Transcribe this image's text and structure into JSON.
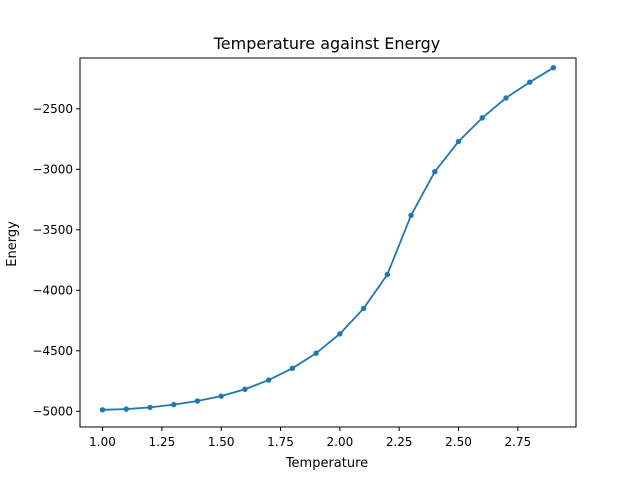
{
  "chart_data": {
    "type": "line",
    "title": "Temperature against Energy",
    "xlabel": "Temperature",
    "ylabel": "Energy",
    "xlim": [
      0.905,
      2.995
    ],
    "ylim": [
      -5130,
      -2080
    ],
    "grid": false,
    "legend": "none",
    "x_ticks": [
      1.0,
      1.25,
      1.5,
      1.75,
      2.0,
      2.25,
      2.5,
      2.75
    ],
    "x_tick_labels": [
      "1.00",
      "1.25",
      "1.50",
      "1.75",
      "2.00",
      "2.25",
      "2.50",
      "2.75"
    ],
    "y_ticks": [
      -5000,
      -4500,
      -4000,
      -3500,
      -3000,
      -2500
    ],
    "y_tick_labels": [
      "−5000",
      "−4500",
      "−4000",
      "−3500",
      "−3000",
      "−2500"
    ],
    "series": [
      {
        "color": "#1f77b4",
        "marker": "circle",
        "x": [
          1.0,
          1.1,
          1.2,
          1.3,
          1.4,
          1.5,
          1.6,
          1.7,
          1.8,
          1.9,
          2.0,
          2.1,
          2.2,
          2.3,
          2.4,
          2.5,
          2.6,
          2.7,
          2.8,
          2.9
        ],
        "y": [
          -4988,
          -4982,
          -4968,
          -4945,
          -4915,
          -4875,
          -4818,
          -4742,
          -4645,
          -4520,
          -4360,
          -4150,
          -3870,
          -3380,
          -3020,
          -2770,
          -2575,
          -2410,
          -2280,
          -2160
        ]
      }
    ]
  }
}
